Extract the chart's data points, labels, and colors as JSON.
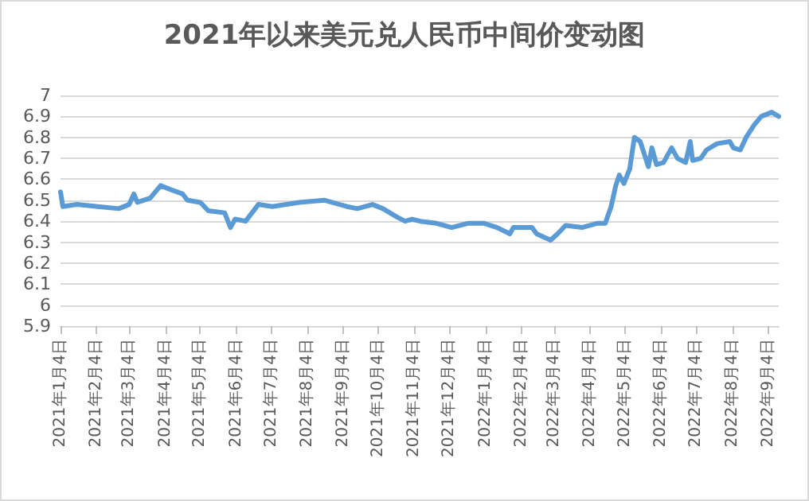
{
  "chart_data": {
    "type": "line",
    "title": "2021年以来美元兑人民币中间价变动图",
    "x": [
      "2021-01-04",
      "2021-01-06",
      "2021-01-18",
      "2021-02-05",
      "2021-02-23",
      "2021-03-04",
      "2021-03-08",
      "2021-03-11",
      "2021-03-22",
      "2021-03-31",
      "2021-04-09",
      "2021-04-19",
      "2021-04-23",
      "2021-05-04",
      "2021-05-11",
      "2021-05-25",
      "2021-05-30",
      "2021-06-03",
      "2021-06-12",
      "2021-06-23",
      "2021-07-05",
      "2021-07-28",
      "2021-08-19",
      "2021-09-07",
      "2021-09-16",
      "2021-09-29",
      "2021-10-08",
      "2021-10-20",
      "2021-10-27",
      "2021-11-02",
      "2021-11-09",
      "2021-11-23",
      "2021-12-06",
      "2021-12-20",
      "2022-01-03",
      "2022-01-14",
      "2022-01-25",
      "2022-01-28",
      "2022-02-13",
      "2022-02-17",
      "2022-03-01",
      "2022-03-07",
      "2022-03-14",
      "2022-03-28",
      "2022-04-10",
      "2022-04-17",
      "2022-04-22",
      "2022-04-26",
      "2022-04-29",
      "2022-05-03",
      "2022-05-08",
      "2022-05-12",
      "2022-05-17",
      "2022-05-24",
      "2022-05-27",
      "2022-05-31",
      "2022-06-06",
      "2022-06-13",
      "2022-06-18",
      "2022-06-25",
      "2022-06-29",
      "2022-07-01",
      "2022-07-08",
      "2022-07-13",
      "2022-07-22",
      "2022-08-02",
      "2022-08-05",
      "2022-08-11",
      "2022-08-16",
      "2022-08-23",
      "2022-08-29",
      "2022-09-07",
      "2022-09-13"
    ],
    "series": [
      {
        "color": "#5b9bd5",
        "values": [
          6.54,
          6.47,
          6.48,
          6.47,
          6.46,
          6.48,
          6.53,
          6.49,
          6.51,
          6.57,
          6.55,
          6.53,
          6.5,
          6.49,
          6.45,
          6.44,
          6.37,
          6.41,
          6.4,
          6.48,
          6.47,
          6.49,
          6.5,
          6.47,
          6.46,
          6.48,
          6.46,
          6.42,
          6.4,
          6.41,
          6.4,
          6.39,
          6.37,
          6.39,
          6.39,
          6.37,
          6.34,
          6.37,
          6.37,
          6.34,
          6.31,
          6.34,
          6.38,
          6.37,
          6.39,
          6.39,
          6.47,
          6.57,
          6.62,
          6.58,
          6.65,
          6.8,
          6.78,
          6.66,
          6.75,
          6.67,
          6.68,
          6.75,
          6.7,
          6.68,
          6.78,
          6.69,
          6.7,
          6.74,
          6.77,
          6.78,
          6.75,
          6.74,
          6.8,
          6.86,
          6.9,
          6.92,
          6.9
        ]
      }
    ],
    "xlim": [
      "2021-01-04",
      "2022-09-13"
    ],
    "xticks": [
      {
        "value": "2021-01-04",
        "label": "2021年1月4日"
      },
      {
        "value": "2021-02-04",
        "label": "2021年2月4日"
      },
      {
        "value": "2021-03-04",
        "label": "2021年3月4日"
      },
      {
        "value": "2021-04-04",
        "label": "2021年4月4日"
      },
      {
        "value": "2021-05-04",
        "label": "2021年5月4日"
      },
      {
        "value": "2021-06-04",
        "label": "2021年6月4日"
      },
      {
        "value": "2021-07-04",
        "label": "2021年7月4日"
      },
      {
        "value": "2021-08-04",
        "label": "2021年8月4日"
      },
      {
        "value": "2021-09-04",
        "label": "2021年9月4日"
      },
      {
        "value": "2021-10-04",
        "label": "2021年10月4日"
      },
      {
        "value": "2021-11-04",
        "label": "2021年11月4日"
      },
      {
        "value": "2021-12-04",
        "label": "2021年12月4日"
      },
      {
        "value": "2022-01-04",
        "label": "2022年1月4日"
      },
      {
        "value": "2022-02-04",
        "label": "2022年2月4日"
      },
      {
        "value": "2022-03-04",
        "label": "2022年3月4日"
      },
      {
        "value": "2022-04-04",
        "label": "2022年4月4日"
      },
      {
        "value": "2022-05-04",
        "label": "2022年5月4日"
      },
      {
        "value": "2022-06-04",
        "label": "2022年6月4日"
      },
      {
        "value": "2022-07-04",
        "label": "2022年7月4日"
      },
      {
        "value": "2022-08-04",
        "label": "2022年8月4日"
      },
      {
        "value": "2022-09-04",
        "label": "2022年9月4日"
      }
    ],
    "ylim": [
      5.9,
      7
    ],
    "yticks": [
      5.9,
      6,
      6.1,
      6.2,
      6.3,
      6.4,
      6.5,
      6.6,
      6.7,
      6.8,
      6.9,
      7
    ],
    "grid": "y",
    "marker": "none",
    "line_style": "solid"
  }
}
